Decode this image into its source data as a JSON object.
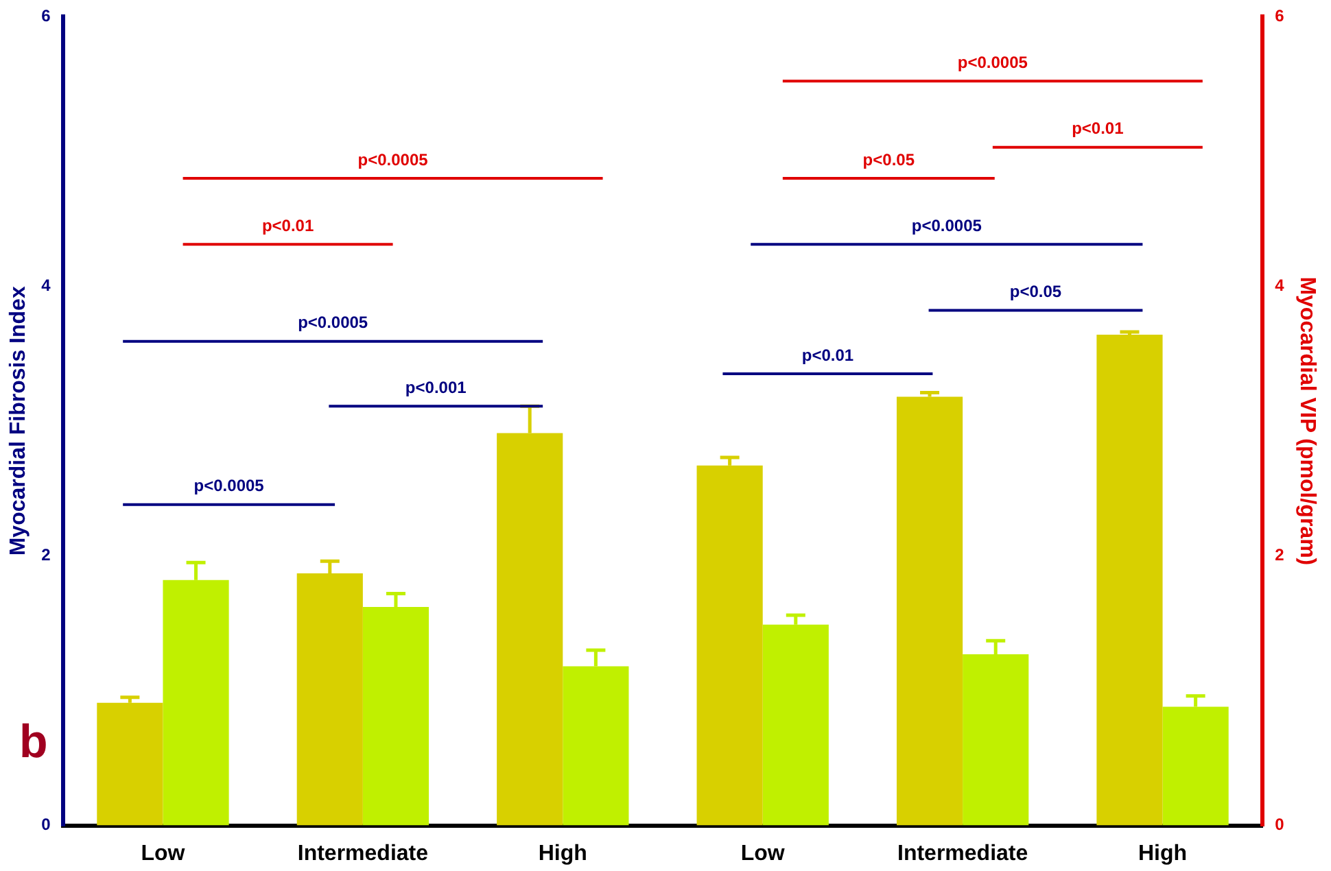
{
  "chart_data": {
    "type": "bar",
    "xlabel": null,
    "ylabel": "Myocardial Fibrosis Index",
    "y2label": "Myocardial VIP (pmol/gram)",
    "categories": [
      "Low",
      "Intermediate",
      "High",
      "Low",
      "Intermediate",
      "High"
    ],
    "series": [
      {
        "color": "#d8d000",
        "values": [
          0.91,
          1.87,
          2.91,
          2.67,
          3.18,
          3.64
        ],
        "errors": [
          [
            0.91,
            0.95
          ],
          [
            1.87,
            1.96
          ],
          [
            2.91,
            3.11
          ],
          [
            2.67,
            2.73
          ],
          [
            3.18,
            3.21
          ],
          [
            3.64,
            3.66
          ]
        ]
      },
      {
        "color": "#c0f000",
        "axis": "y2",
        "values": [
          1.82,
          1.62,
          1.18,
          1.49,
          1.27,
          0.88
        ],
        "errors": [
          [
            1.82,
            1.95
          ],
          [
            1.62,
            1.72
          ],
          [
            1.18,
            1.3
          ],
          [
            1.49,
            1.56
          ],
          [
            1.27,
            1.37
          ],
          [
            0.88,
            0.96
          ]
        ]
      }
    ],
    "ylim": [
      0,
      6
    ],
    "yticks": [
      0,
      2,
      4,
      6
    ],
    "y2lim": [
      0,
      6
    ],
    "y2ticks": [
      0,
      2,
      4,
      6
    ],
    "grid": false,
    "legend": false,
    "annotations": [
      "b",
      "p<0.0005",
      "p<0.01",
      "p<0.0005",
      "p<0.001",
      "p<0.0005",
      "p<0.0005",
      "p<0.01",
      "p<0.05",
      "p<0.0005",
      "p<0.05",
      "p<0.01"
    ]
  }
}
